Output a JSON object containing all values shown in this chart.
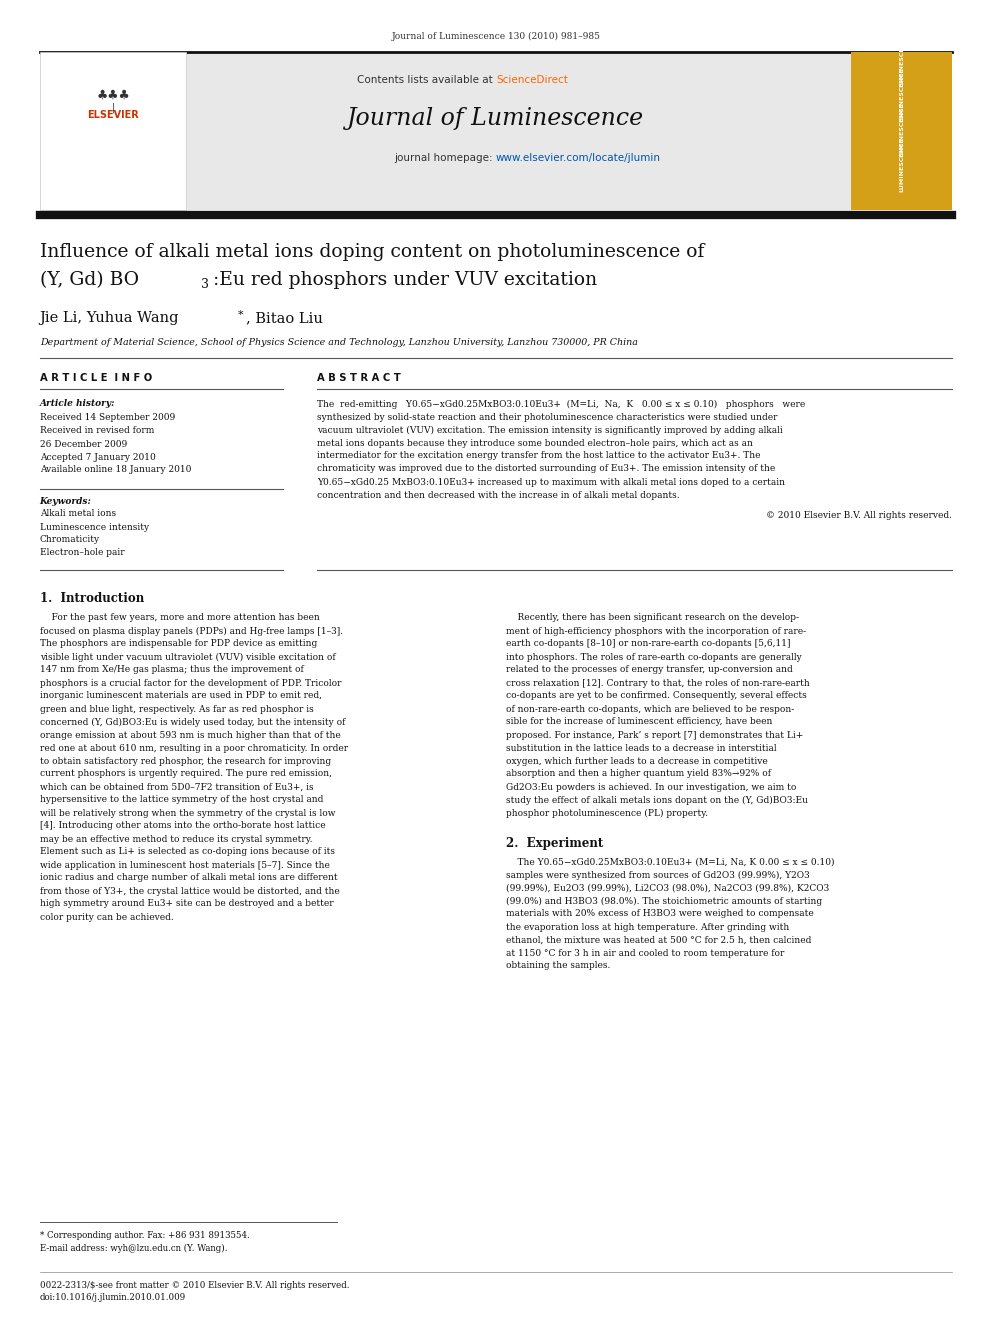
{
  "page_width": 9.92,
  "page_height": 13.23,
  "background_color": "#ffffff",
  "header_journal_ref": "Journal of Luminescence 130 (2010) 981–985",
  "header_bg_color": "#e8e8e8",
  "header_contents_text": "Contents lists available at ",
  "header_sciencedirect": "ScienceDirect",
  "header_journal_name": "Journal of Luminescence",
  "header_homepage_text": "journal homepage: ",
  "header_homepage_url": "www.elsevier.com/locate/jlumin",
  "elsevier_bg": "#f0c040",
  "paper_title_line1": "Influence of alkali metal ions doping content on photoluminescence of",
  "paper_title_line2": "(Y, Gd) BO",
  "paper_title_sub": "3",
  "paper_title_line2_cont": ":Eu red phosphors under VUV excitation",
  "authors_pre": "Jie Li, Yuhua Wang",
  "authors_star": "*",
  "authors_post": ", Bitao Liu",
  "affiliation": "Department of Material Science, School of Physics Science and Technology, Lanzhou University, Lanzhou 730000, PR China",
  "article_info_header": "A R T I C L E  I N F O",
  "abstract_header": "A B S T R A C T",
  "article_history_label": "Article history:",
  "received_1": "Received 14 September 2009",
  "received_revised": "Received in revised form",
  "revised_date": "26 December 2009",
  "accepted": "Accepted 7 January 2010",
  "available": "Available online 18 January 2010",
  "keywords_label": "Keywords:",
  "keyword1": "Alkali metal ions",
  "keyword2": "Luminescence intensity",
  "keyword3": "Chromaticity",
  "keyword4": "Electron–hole pair",
  "copyright": "© 2010 Elsevier B.V. All rights reserved.",
  "section1_title": "1.  Introduction",
  "section2_title": "2.  Experiment",
  "footnote_star": "* Corresponding author. Fax: +86 931 8913554.",
  "footnote_email": "E-mail address: wyh@lzu.edu.cn (Y. Wang).",
  "footer_issn": "0022-2313/$-see front matter © 2010 Elsevier B.V. All rights reserved.",
  "footer_doi": "doi:10.1016/j.jlumin.2010.01.009",
  "top_bar_color": "#1a1a1a",
  "sciencedirect_color": "#ff6600",
  "link_color": "#0055aa",
  "elsevier_text_color": "#cc3300",
  "abstract_lines": [
    "The  red-emitting   Y0.65−xGd0.25MxBO3:0.10Eu3+  (M=Li,  Na,  K   0.00 ≤ x ≤ 0.10)   phosphors   were",
    "synthesized by solid-state reaction and their photoluminescence characteristics were studied under",
    "vacuum ultraviolet (VUV) excitation. The emission intensity is significantly improved by adding alkali",
    "metal ions dopants because they introduce some bounded electron–hole pairs, which act as an",
    "intermediator for the excitation energy transfer from the host lattice to the activator Eu3+. The",
    "chromaticity was improved due to the distorted surrounding of Eu3+. The emission intensity of the",
    "Y0.65−xGd0.25 MxBO3:0.10Eu3+ increased up to maximum with alkali metal ions doped to a certain",
    "concentration and then decreased with the increase in of alkali metal dopants."
  ],
  "intro_left_lines": [
    "    For the past few years, more and more attention has been",
    "focused on plasma display panels (PDPs) and Hg-free lamps [1–3].",
    "The phosphors are indispensable for PDP device as emitting",
    "visible light under vacuum ultraviolet (VUV) visible excitation of",
    "147 nm from Xe/He gas plasma; thus the improvement of",
    "phosphors is a crucial factor for the development of PDP. Tricolor",
    "inorganic luminescent materials are used in PDP to emit red,",
    "green and blue light, respectively. As far as red phosphor is",
    "concerned (Y, Gd)BO3:Eu is widely used today, but the intensity of",
    "orange emission at about 593 nm is much higher than that of the",
    "red one at about 610 nm, resulting in a poor chromaticity. In order",
    "to obtain satisfactory red phosphor, the research for improving",
    "current phosphors is urgently required. The pure red emission,",
    "which can be obtained from 5D0–7F2 transition of Eu3+, is",
    "hypersensitive to the lattice symmetry of the host crystal and",
    "will be relatively strong when the symmetry of the crystal is low",
    "[4]. Introducing other atoms into the ortho-borate host lattice",
    "may be an effective method to reduce its crystal symmetry.",
    "Element such as Li+ is selected as co-doping ions because of its",
    "wide application in luminescent host materials [5–7]. Since the",
    "ionic radius and charge number of alkali metal ions are different",
    "from those of Y3+, the crystal lattice would be distorted, and the",
    "high symmetry around Eu3+ site can be destroyed and a better",
    "color purity can be achieved."
  ],
  "intro_right_lines": [
    "    Recently, there has been significant research on the develop-",
    "ment of high-efficiency phosphors with the incorporation of rare-",
    "earth co-dopants [8–10] or non-rare-earth co-dopants [5,6,11]",
    "into phosphors. The roles of rare-earth co-dopants are generally",
    "related to the processes of energy transfer, up-conversion and",
    "cross relaxation [12]. Contrary to that, the roles of non-rare-earth",
    "co-dopants are yet to be confirmed. Consequently, several effects",
    "of non-rare-earth co-dopants, which are believed to be respon-",
    "sible for the increase of luminescent efficiency, have been",
    "proposed. For instance, Park’ s report [7] demonstrates that Li+",
    "substitution in the lattice leads to a decrease in interstitial",
    "oxygen, which further leads to a decrease in competitive",
    "absorption and then a higher quantum yield 83%→92% of",
    "Gd2O3:Eu powders is achieved. In our investigation, we aim to",
    "study the effect of alkali metals ions dopant on the (Y, Gd)BO3:Eu",
    "phosphor photoluminescence (PL) property."
  ],
  "exp_right_lines": [
    "    The Y0.65−xGd0.25MxBO3:0.10Eu3+ (M=Li, Na, K 0.00 ≤ x ≤ 0.10)",
    "samples were synthesized from sources of Gd2O3 (99.99%), Y2O3",
    "(99.99%), Eu2O3 (99.99%), Li2CO3 (98.0%), Na2CO3 (99.8%), K2CO3",
    "(99.0%) and H3BO3 (98.0%). The stoichiometric amounts of starting",
    "materials with 20% excess of H3BO3 were weighed to compensate",
    "the evaporation loss at high temperature. After grinding with",
    "ethanol, the mixture was heated at 500 °C for 2.5 h, then calcined",
    "at 1150 °C for 3 h in air and cooled to room temperature for",
    "obtaining the samples."
  ]
}
